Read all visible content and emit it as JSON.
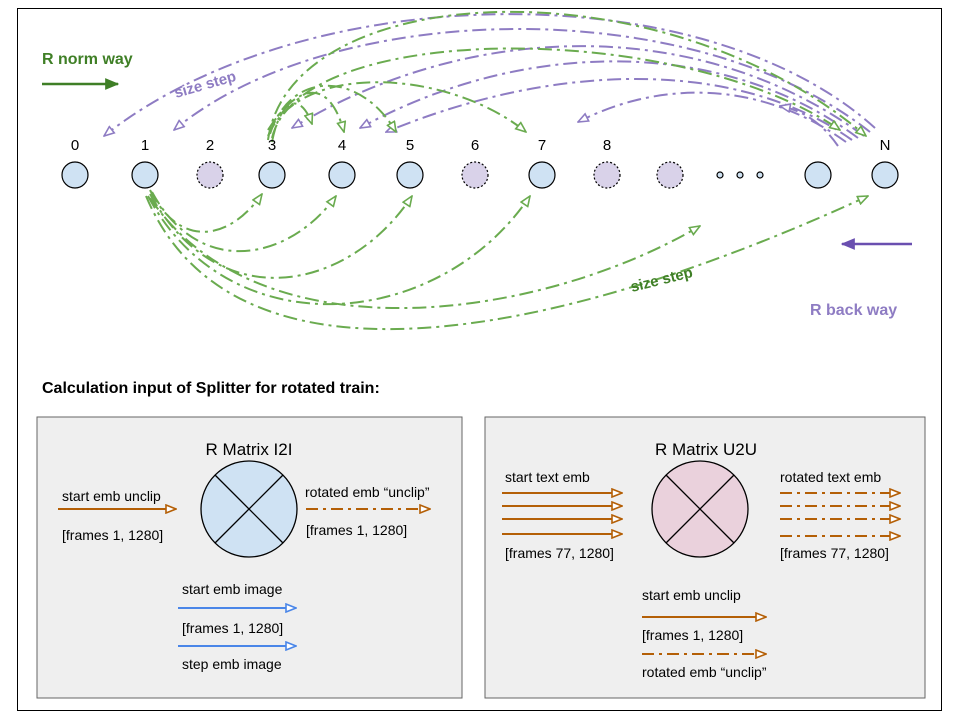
{
  "top": {
    "norm_label": "R norm way",
    "back_label": "R back way",
    "size_step_top": "size step",
    "size_step_bottom": "size step",
    "node_labels": [
      "0",
      "1",
      "2",
      "3",
      "4",
      "5",
      "6",
      "7",
      "8",
      "N"
    ]
  },
  "section_title": "Calculation input of Splitter for rotated train:",
  "panel_left": {
    "title": "R Matrix I2I",
    "start_emb_unclip": "start emb unclip",
    "start_emb_unclip_shape": "[frames 1, 1280]",
    "rotated_emb_unclip": "rotated emb “unclip”",
    "rotated_emb_unclip_shape": "[frames 1, 1280]",
    "start_emb_image": "start emb image",
    "start_emb_image_shape": "[frames 1, 1280]",
    "step_emb_image": "step emb image"
  },
  "panel_right": {
    "title": "R Matrix U2U",
    "start_text_emb": "start text emb",
    "start_text_emb_shape": "[frames 77, 1280]",
    "rotated_text_emb": "rotated text emb",
    "rotated_text_emb_shape": "[frames 77, 1280]",
    "start_emb_unclip": "start emb unclip",
    "start_emb_unclip_shape": "[frames 1, 1280]",
    "rotated_emb_unclip": "rotated emb “unclip”"
  },
  "colors": {
    "green": "#6aab4f",
    "green_dark": "#3f7f26",
    "purple": "#8e7cc3",
    "purple_dark": "#6a4fb0",
    "orange": "#b45f06",
    "blue": "#4a86e8",
    "node_blue": "#cfe2f3",
    "node_purple": "#d9d2e9",
    "node_pink": "#ead1dc",
    "panel_bg": "#efefef"
  }
}
